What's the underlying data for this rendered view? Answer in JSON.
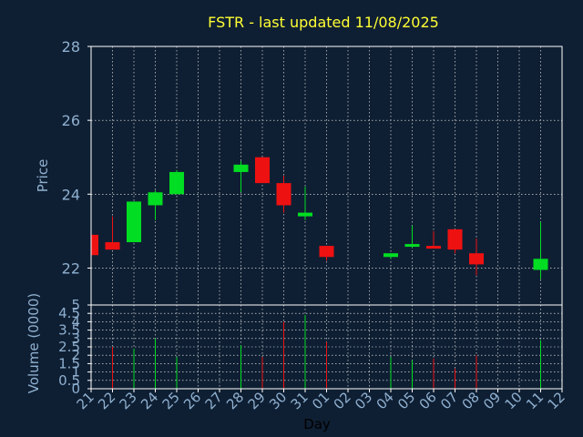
{
  "colors": {
    "background": "#0f1f33",
    "title": "#ffff33",
    "axis_text": "#8fb0d0",
    "frame": "#ffffff",
    "grid": "#ffffff",
    "up": "#00dd22",
    "down": "#ee1111"
  },
  "chart_data": {
    "type": "candlestick",
    "title": "FSTR - last updated 11/08/2025",
    "price_panel": {
      "ylabel": "Price",
      "ylim": [
        21,
        28
      ],
      "yticks": [
        "22",
        "24",
        "26",
        "28"
      ],
      "grid": true
    },
    "volume_panel": {
      "ylabel": "Volume (0000)",
      "ylim": [
        0,
        5
      ],
      "yticks": [
        "0",
        "0.5",
        "1",
        "1.5",
        "2",
        "2.5",
        "3",
        "3.5",
        "4",
        "4.5",
        "5"
      ],
      "grid": true
    },
    "xlabel": "Day",
    "x_ticks": [
      "21",
      "22",
      "23",
      "24",
      "25",
      "26",
      "27",
      "28",
      "29",
      "30",
      "31",
      "01",
      "02",
      "03",
      "04",
      "05",
      "06",
      "07",
      "08",
      "09",
      "10",
      "11",
      "12"
    ],
    "candles": [
      {
        "day": "21",
        "open": 22.9,
        "high": 22.9,
        "low": 22.35,
        "close": 22.35,
        "volume": 0
      },
      {
        "day": "22",
        "open": 22.7,
        "high": 23.4,
        "low": 22.5,
        "close": 22.5,
        "volume": 2.5
      },
      {
        "day": "23",
        "open": 22.7,
        "high": 23.8,
        "low": 22.7,
        "close": 23.8,
        "volume": 2.4
      },
      {
        "day": "24",
        "open": 23.7,
        "high": 24.1,
        "low": 23.3,
        "close": 24.05,
        "volume": 3.0
      },
      {
        "day": "25",
        "open": 24.0,
        "high": 24.65,
        "low": 24.0,
        "close": 24.6,
        "volume": 1.9
      },
      {
        "day": "28",
        "open": 24.6,
        "high": 24.9,
        "low": 24.05,
        "close": 24.8,
        "volume": 2.6
      },
      {
        "day": "29",
        "open": 25.0,
        "high": 25.0,
        "low": 24.3,
        "close": 24.3,
        "volume": 1.9
      },
      {
        "day": "30",
        "open": 24.3,
        "high": 24.5,
        "low": 23.5,
        "close": 23.7,
        "volume": 4.0
      },
      {
        "day": "31",
        "open": 23.4,
        "high": 24.2,
        "low": 23.3,
        "close": 23.5,
        "volume": 4.4
      },
      {
        "day": "01",
        "open": 22.6,
        "high": 22.6,
        "low": 22.2,
        "close": 22.3,
        "volume": 2.8
      },
      {
        "day": "04",
        "open": 22.3,
        "high": 22.4,
        "low": 22.25,
        "close": 22.4,
        "volume": 1.9
      },
      {
        "day": "05",
        "open": 22.6,
        "high": 23.15,
        "low": 22.55,
        "close": 22.65,
        "volume": 1.7
      },
      {
        "day": "06",
        "open": 22.6,
        "high": 23.0,
        "low": 22.55,
        "close": 22.55,
        "volume": 1.8
      },
      {
        "day": "07",
        "open": 23.05,
        "high": 23.05,
        "low": 22.4,
        "close": 22.5,
        "volume": 1.2
      },
      {
        "day": "08",
        "open": 22.4,
        "high": 22.8,
        "low": 21.8,
        "close": 22.1,
        "volume": 2.0
      },
      {
        "day": "11",
        "open": 21.95,
        "high": 23.25,
        "low": 21.7,
        "close": 22.25,
        "volume": 2.9
      }
    ]
  }
}
